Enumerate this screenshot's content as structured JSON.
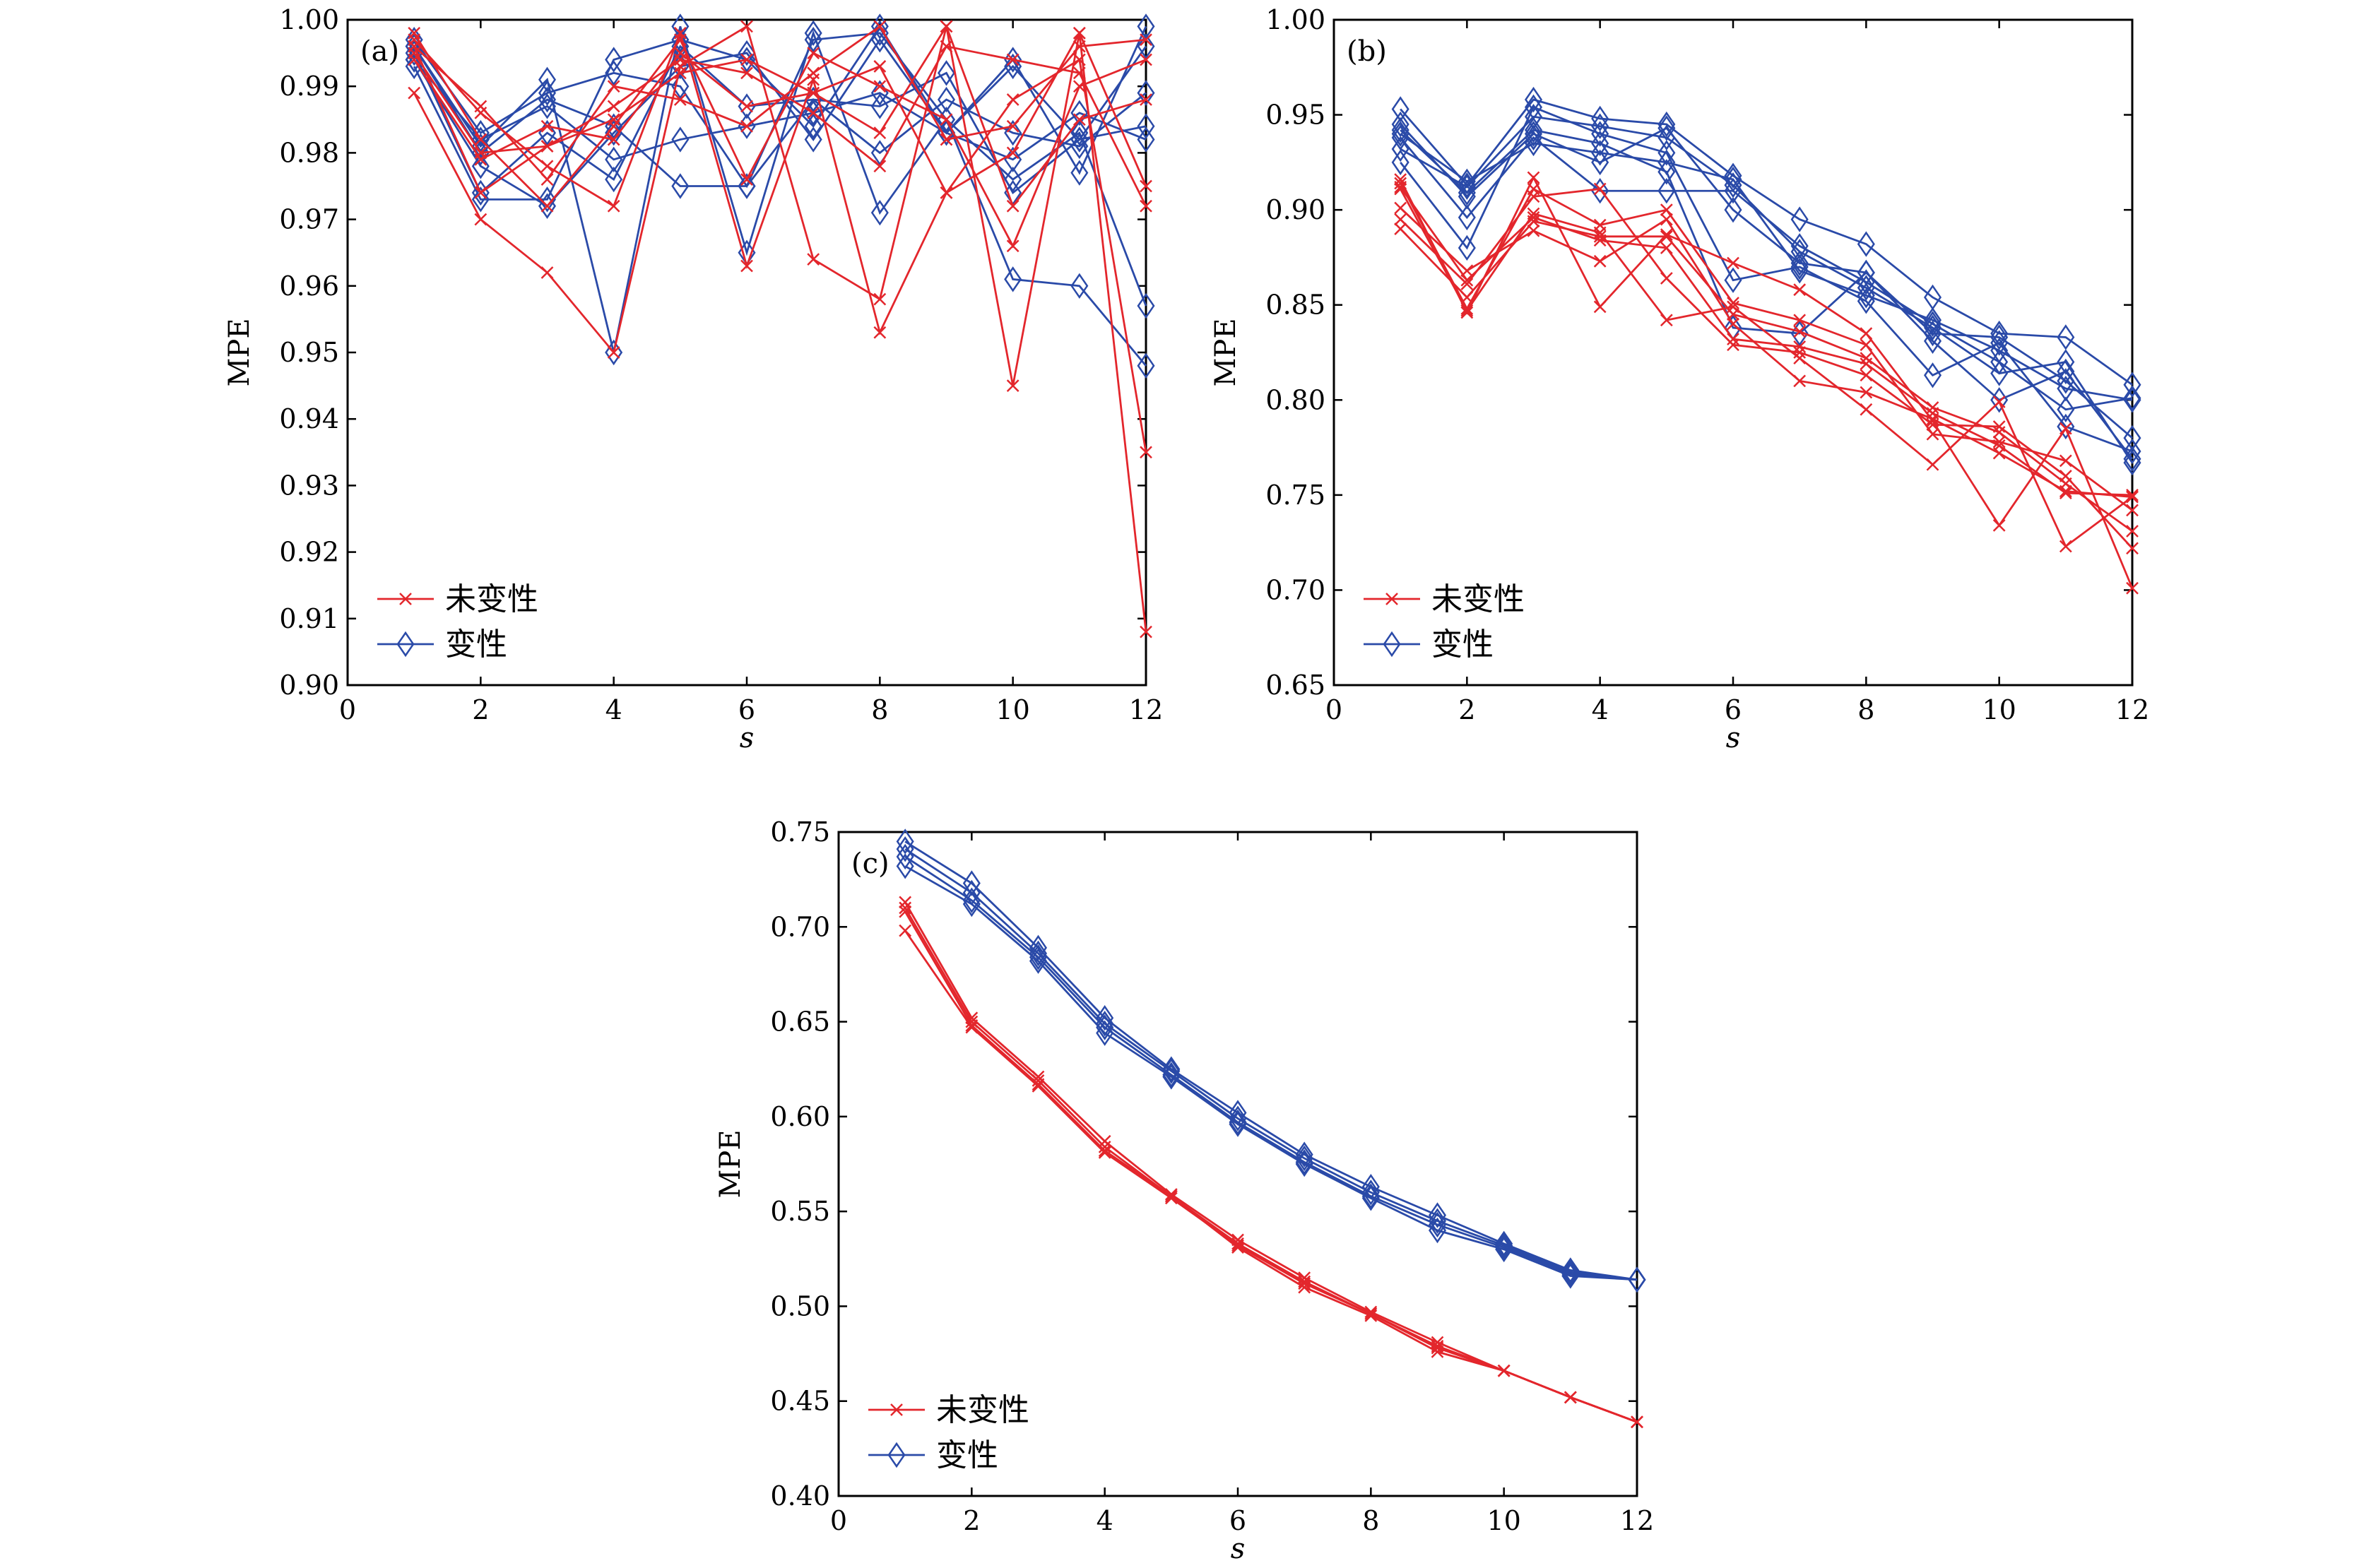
{
  "colors": {
    "unaltered": "#e3262c",
    "altered": "#2a4aa8"
  },
  "chart_data": [
    {
      "type": "line",
      "panel_label": "(a)",
      "xlabel": "s",
      "ylabel": "MPE",
      "xlim": [
        0,
        12
      ],
      "ylim": [
        0.9,
        1.0
      ],
      "xticks": [
        "0",
        "2",
        "4",
        "6",
        "8",
        "10",
        "12"
      ],
      "yticks": [
        "0.90",
        "0.91",
        "0.92",
        "0.93",
        "0.94",
        "0.95",
        "0.96",
        "0.97",
        "0.98",
        "0.99",
        "1.00"
      ],
      "legend": {
        "position": "bottom-left",
        "entries": [
          "未变性",
          "变性"
        ]
      },
      "x": [
        1,
        2,
        3,
        4,
        5,
        6,
        7,
        8,
        9,
        10,
        11,
        12
      ],
      "series": [
        {
          "name": "未变性",
          "values": [
            0.989,
            0.97,
            0.962,
            0.95,
            0.993,
            0.999,
            0.964,
            0.958,
            0.999,
            0.945,
            0.998,
            0.908
          ]
        },
        {
          "name": "未变性",
          "values": [
            0.997,
            0.986,
            0.978,
            0.972,
            0.998,
            0.963,
            0.991,
            0.953,
            0.974,
            0.988,
            0.994,
            0.935
          ]
        },
        {
          "name": "未变性",
          "values": [
            0.995,
            0.98,
            0.981,
            0.987,
            0.994,
            0.992,
            0.986,
            0.978,
            0.996,
            0.994,
            0.992,
            0.972
          ]
        },
        {
          "name": "未变性",
          "values": [
            0.996,
            0.987,
            0.976,
            0.99,
            0.988,
            0.984,
            0.992,
            0.999,
            0.982,
            0.984,
            0.996,
            0.997
          ]
        },
        {
          "name": "未变性",
          "values": [
            0.998,
            0.982,
            0.972,
            0.984,
            0.997,
            0.976,
            0.995,
            0.99,
            0.985,
            0.966,
            0.99,
            0.994
          ]
        },
        {
          "name": "未变性",
          "values": [
            0.994,
            0.979,
            0.984,
            0.982,
            0.995,
            0.987,
            0.989,
            0.993,
            0.974,
            0.98,
            0.998,
            0.975
          ]
        },
        {
          "name": "未变性",
          "values": [
            0.996,
            0.974,
            0.981,
            0.985,
            0.992,
            0.994,
            0.989,
            0.983,
            0.999,
            0.972,
            0.985,
            0.988
          ]
        }
      ],
      "series_altered": [
        {
          "name": "变性",
          "values": [
            0.996,
            0.981,
            0.991,
            0.95,
            0.999,
            0.965,
            0.998,
            0.971,
            0.985,
            0.961,
            0.96,
            0.948
          ]
        },
        {
          "name": "变性",
          "values": [
            0.993,
            0.973,
            0.973,
            0.994,
            0.997,
            0.994,
            0.984,
            0.999,
            0.983,
            0.994,
            0.977,
            0.999
          ]
        },
        {
          "name": "变性",
          "values": [
            0.997,
            0.983,
            0.989,
            0.992,
            0.99,
            0.975,
            0.997,
            0.998,
            0.985,
            0.976,
            0.983,
            0.957
          ]
        },
        {
          "name": "变性",
          "values": [
            0.995,
            0.974,
            0.983,
            0.976,
            0.996,
            0.987,
            0.988,
            0.987,
            0.992,
            0.974,
            0.982,
            0.984
          ]
        },
        {
          "name": "变性",
          "values": [
            0.994,
            0.982,
            0.987,
            0.979,
            0.982,
            0.984,
            0.986,
            0.989,
            0.983,
            0.979,
            0.986,
            0.982
          ]
        },
        {
          "name": "变性",
          "values": [
            0.994,
            0.978,
            0.972,
            0.983,
            0.993,
            0.995,
            0.982,
            0.997,
            0.983,
            0.993,
            0.982,
            0.996
          ]
        },
        {
          "name": "变性",
          "values": [
            0.996,
            0.98,
            0.988,
            0.984,
            0.975,
            0.975,
            0.988,
            0.98,
            0.988,
            0.983,
            0.981,
            0.989
          ]
        }
      ]
    },
    {
      "type": "line",
      "panel_label": "(b)",
      "xlabel": "s",
      "ylabel": "MPE",
      "xlim": [
        0,
        12
      ],
      "ylim": [
        0.65,
        1.0
      ],
      "xticks": [
        "0",
        "2",
        "4",
        "6",
        "8",
        "10",
        "12"
      ],
      "yticks": [
        "0.65",
        "0.70",
        "0.75",
        "0.80",
        "0.85",
        "0.90",
        "0.95",
        "1.00"
      ],
      "legend": {
        "position": "bottom-left",
        "entries": [
          "未变性",
          "变性"
        ]
      },
      "x": [
        1,
        2,
        3,
        4,
        5,
        6,
        7,
        8,
        9,
        10,
        11,
        12
      ],
      "series": [
        {
          "name": "未变性",
          "values": [
            0.916,
            0.846,
            0.917,
            0.849,
            0.887,
            0.872,
            0.858,
            0.835,
            0.789,
            0.734,
            0.785,
            0.701
          ]
        },
        {
          "name": "未变性",
          "values": [
            0.911,
            0.847,
            0.898,
            0.888,
            0.842,
            0.849,
            0.822,
            0.795,
            0.766,
            0.799,
            0.723,
            0.749
          ]
        },
        {
          "name": "未变性",
          "values": [
            0.901,
            0.868,
            0.889,
            0.873,
            0.895,
            0.84,
            0.81,
            0.804,
            0.79,
            0.772,
            0.752,
            0.749
          ]
        },
        {
          "name": "未变性",
          "values": [
            0.895,
            0.861,
            0.907,
            0.911,
            0.864,
            0.829,
            0.825,
            0.813,
            0.787,
            0.786,
            0.76,
            0.722
          ]
        },
        {
          "name": "未变性",
          "values": [
            0.89,
            0.854,
            0.894,
            0.886,
            0.886,
            0.845,
            0.836,
            0.822,
            0.796,
            0.783,
            0.756,
            0.731
          ]
        },
        {
          "name": "未变性",
          "values": [
            0.914,
            0.848,
            0.911,
            0.892,
            0.9,
            0.851,
            0.842,
            0.829,
            0.782,
            0.778,
            0.768,
            0.742
          ]
        },
        {
          "name": "未变性",
          "values": [
            0.912,
            0.863,
            0.896,
            0.884,
            0.88,
            0.832,
            0.828,
            0.819,
            0.793,
            0.776,
            0.751,
            0.75
          ]
        }
      ],
      "series_altered": [
        {
          "name": "变性",
          "values": [
            0.953,
            0.913,
            0.958,
            0.948,
            0.945,
            0.918,
            0.895,
            0.882,
            0.854,
            0.835,
            0.833,
            0.808
          ]
        },
        {
          "name": "变性",
          "values": [
            0.942,
            0.909,
            0.942,
            0.935,
            0.92,
            0.838,
            0.835,
            0.867,
            0.831,
            0.8,
            0.815,
            0.769
          ]
        },
        {
          "name": "变性",
          "values": [
            0.925,
            0.88,
            0.954,
            0.94,
            0.93,
            0.863,
            0.87,
            0.852,
            0.813,
            0.83,
            0.786,
            0.773
          ]
        },
        {
          "name": "变性",
          "values": [
            0.938,
            0.896,
            0.938,
            0.91,
            0.91,
            0.91,
            0.881,
            0.862,
            0.84,
            0.82,
            0.795,
            0.801
          ]
        },
        {
          "name": "变性",
          "values": [
            0.945,
            0.907,
            0.94,
            0.925,
            0.943,
            0.9,
            0.872,
            0.867,
            0.835,
            0.833,
            0.81,
            0.78
          ]
        },
        {
          "name": "变性",
          "values": [
            0.932,
            0.912,
            0.949,
            0.944,
            0.938,
            0.913,
            0.878,
            0.859,
            0.838,
            0.814,
            0.82,
            0.767
          ]
        },
        {
          "name": "变性",
          "values": [
            0.94,
            0.915,
            0.935,
            0.93,
            0.925,
            0.916,
            0.868,
            0.855,
            0.842,
            0.826,
            0.806,
            0.8
          ]
        }
      ]
    },
    {
      "type": "line",
      "panel_label": "(c)",
      "xlabel": "s",
      "ylabel": "MPE",
      "xlim": [
        0,
        12
      ],
      "ylim": [
        0.4,
        0.75
      ],
      "xticks": [
        "0",
        "2",
        "4",
        "6",
        "8",
        "10",
        "12"
      ],
      "yticks": [
        "0.40",
        "0.45",
        "0.50",
        "0.55",
        "0.60",
        "0.65",
        "0.70",
        "0.75"
      ],
      "legend": {
        "position": "bottom-left",
        "entries": [
          "未变性",
          "变性"
        ]
      },
      "x": [
        1,
        2,
        3,
        4,
        5,
        6,
        7,
        8,
        9,
        10,
        11,
        12
      ],
      "series": [
        {
          "name": "未变性",
          "values": [
            0.713,
            0.652,
            0.621,
            0.587,
            0.559,
            0.535,
            0.515,
            0.497,
            0.481,
            0.466,
            0.452,
            0.439
          ]
        },
        {
          "name": "未变性",
          "values": [
            0.71,
            0.65,
            0.619,
            0.584,
            0.558,
            0.533,
            0.513,
            0.496,
            0.479,
            0.466,
            0.452,
            0.439
          ]
        },
        {
          "name": "未变性",
          "values": [
            0.708,
            0.648,
            0.617,
            0.582,
            0.558,
            0.531,
            0.51,
            0.495,
            0.476,
            0.466,
            0.452,
            0.439
          ]
        },
        {
          "name": "未变性",
          "values": [
            0.698,
            0.647,
            0.616,
            0.581,
            0.557,
            0.532,
            0.512,
            0.496,
            0.478,
            0.466,
            0.452,
            0.439
          ]
        }
      ],
      "series_altered": [
        {
          "name": "变性",
          "values": [
            0.745,
            0.723,
            0.689,
            0.652,
            0.625,
            0.602,
            0.58,
            0.563,
            0.548,
            0.533,
            0.519,
            0.514
          ]
        },
        {
          "name": "变性",
          "values": [
            0.741,
            0.718,
            0.686,
            0.649,
            0.624,
            0.599,
            0.578,
            0.56,
            0.545,
            0.532,
            0.518,
            0.514
          ]
        },
        {
          "name": "变性",
          "values": [
            0.737,
            0.714,
            0.684,
            0.647,
            0.622,
            0.597,
            0.576,
            0.558,
            0.543,
            0.531,
            0.517,
            0.514
          ]
        },
        {
          "name": "变性",
          "values": [
            0.732,
            0.712,
            0.682,
            0.644,
            0.621,
            0.596,
            0.575,
            0.557,
            0.54,
            0.53,
            0.516,
            0.514
          ]
        }
      ]
    }
  ]
}
